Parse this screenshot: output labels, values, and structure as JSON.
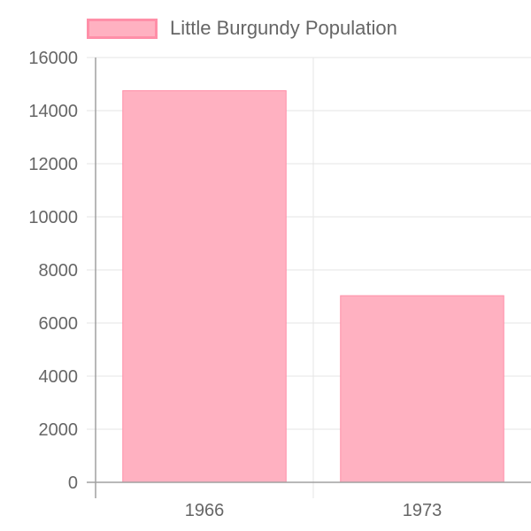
{
  "chart_data": {
    "type": "bar",
    "categories": [
      "1966",
      "1973"
    ],
    "series": [
      {
        "name": "Little Burgundy Population",
        "values": [
          14750,
          7030
        ]
      }
    ],
    "title": "",
    "xlabel": "",
    "ylabel": "",
    "ylim": [
      0,
      16000
    ],
    "yticks": [
      0,
      2000,
      4000,
      6000,
      8000,
      10000,
      12000,
      14000,
      16000
    ],
    "grid": true,
    "legend_position": "top-left",
    "colors": {
      "bar_fill": "#ffb1c1",
      "bar_border": "#ff8fa8",
      "grid": "#e5e5e5",
      "axis": "#a0a0a0",
      "text": "#666666"
    }
  }
}
